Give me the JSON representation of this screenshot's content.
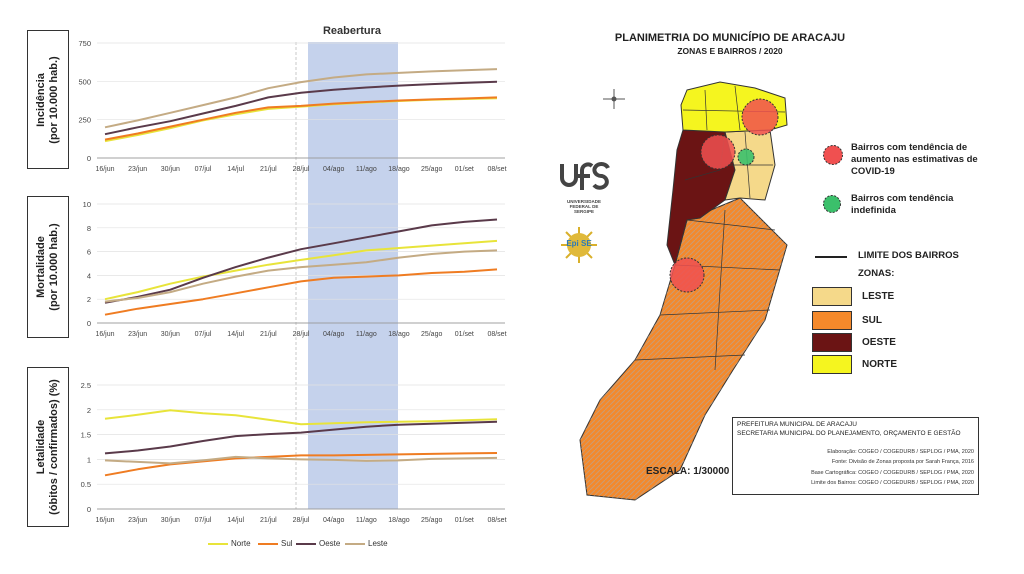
{
  "charts": {
    "band_title": "Reabertura",
    "ylabels": [
      "Incidência\n(por 10.000 hab.)",
      "Mortalidade\n(por 10.000 hab.)",
      "Letalidade\n(óbitos / confirmados) (%)"
    ],
    "xticks": [
      "16/jun",
      "23/jun",
      "30/jun",
      "07/jul",
      "14/jul",
      "21/jul",
      "28/jul",
      "04/ago",
      "11/ago",
      "18/ago",
      "25/ago",
      "01/set",
      "08/set"
    ],
    "legend": [
      {
        "name": "Norte",
        "color": "#e8e43a"
      },
      {
        "name": "Sul",
        "color": "#ef7c22"
      },
      {
        "name": "Oeste",
        "color": "#5a3a4a"
      },
      {
        "name": "Leste",
        "color": "#c4ab84"
      }
    ]
  },
  "chart_data": [
    {
      "type": "line",
      "ylabel": "Incidência (por 10.000 hab.)",
      "ylim": [
        0,
        750
      ],
      "yticks": [
        0,
        250,
        500,
        750
      ],
      "x": [
        "16/jun",
        "23/jun",
        "30/jun",
        "07/jul",
        "14/jul",
        "21/jul",
        "28/jul",
        "04/ago",
        "11/ago",
        "18/ago",
        "25/ago",
        "01/set",
        "08/set"
      ],
      "series": [
        {
          "name": "Norte",
          "values": [
            110,
            150,
            195,
            245,
            285,
            320,
            335,
            350,
            362,
            372,
            380,
            385,
            390
          ]
        },
        {
          "name": "Sul",
          "values": [
            120,
            160,
            205,
            250,
            295,
            330,
            340,
            355,
            365,
            375,
            382,
            388,
            395
          ]
        },
        {
          "name": "Oeste",
          "values": [
            155,
            200,
            240,
            290,
            340,
            395,
            425,
            445,
            460,
            472,
            482,
            490,
            497
          ]
        },
        {
          "name": "Leste",
          "values": [
            200,
            245,
            295,
            345,
            395,
            455,
            495,
            525,
            545,
            555,
            565,
            572,
            580
          ]
        }
      ]
    },
    {
      "type": "line",
      "ylabel": "Mortalidade (por 10.000 hab.)",
      "ylim": [
        0,
        10
      ],
      "yticks": [
        0,
        2,
        4,
        6,
        8,
        10
      ],
      "x": [
        "16/jun",
        "23/jun",
        "30/jun",
        "07/jul",
        "14/jul",
        "21/jul",
        "28/jul",
        "04/ago",
        "11/ago",
        "18/ago",
        "25/ago",
        "01/set",
        "08/set"
      ],
      "series": [
        {
          "name": "Norte",
          "values": [
            2.0,
            2.6,
            3.3,
            3.9,
            4.4,
            4.9,
            5.3,
            5.7,
            6.1,
            6.3,
            6.5,
            6.7,
            6.9
          ]
        },
        {
          "name": "Sul",
          "values": [
            0.7,
            1.2,
            1.6,
            2.0,
            2.5,
            3.0,
            3.5,
            3.8,
            3.9,
            4.0,
            4.2,
            4.3,
            4.5
          ]
        },
        {
          "name": "Oeste",
          "values": [
            1.7,
            2.2,
            2.8,
            3.8,
            4.7,
            5.5,
            6.2,
            6.7,
            7.2,
            7.7,
            8.2,
            8.5,
            8.7
          ]
        },
        {
          "name": "Leste",
          "values": [
            1.8,
            2.1,
            2.6,
            3.3,
            3.9,
            4.4,
            4.7,
            4.9,
            5.1,
            5.5,
            5.8,
            6.0,
            6.1
          ]
        }
      ]
    },
    {
      "type": "line",
      "ylabel": "Letalidade (óbitos / confirmados) (%)",
      "ylim": [
        0,
        2.5
      ],
      "yticks": [
        0,
        0.5,
        1,
        1.5,
        2,
        2.5
      ],
      "x": [
        "16/jun",
        "23/jun",
        "30/jun",
        "07/jul",
        "14/jul",
        "21/jul",
        "28/jul",
        "04/ago",
        "11/ago",
        "18/ago",
        "25/ago",
        "01/set",
        "08/set"
      ],
      "series": [
        {
          "name": "Norte",
          "values": [
            1.82,
            1.9,
            1.99,
            1.93,
            1.89,
            1.8,
            1.71,
            1.73,
            1.75,
            1.76,
            1.77,
            1.79,
            1.81
          ]
        },
        {
          "name": "Sul",
          "values": [
            0.68,
            0.8,
            0.9,
            0.96,
            1.02,
            1.05,
            1.08,
            1.08,
            1.09,
            1.1,
            1.11,
            1.12,
            1.13
          ]
        },
        {
          "name": "Oeste",
          "values": [
            1.12,
            1.18,
            1.26,
            1.37,
            1.47,
            1.51,
            1.54,
            1.6,
            1.66,
            1.7,
            1.72,
            1.74,
            1.76
          ]
        },
        {
          "name": "Leste",
          "values": [
            0.98,
            0.95,
            0.92,
            0.98,
            1.05,
            1.02,
            1.0,
            0.99,
            0.97,
            0.98,
            1.01,
            1.02,
            1.03
          ]
        }
      ]
    }
  ],
  "map": {
    "title": "PLANIMETRIA DO MUNICÍPIO DE ARACAJU",
    "subtitle": "ZONAS E BAIRROS / 2020",
    "legend_increase": "Bairros com tendência de aumento nas estimativas de COVID-19",
    "legend_undefined": "Bairros com tendência indefinida",
    "limit_label": "LIMITE DOS BAIRROS",
    "zones_label": "ZONAS:",
    "zones": [
      {
        "name": "LESTE",
        "color": "#f5d98a"
      },
      {
        "name": "SUL",
        "color": "#f4892b"
      },
      {
        "name": "OESTE",
        "color": "#6b1414"
      },
      {
        "name": "NORTE",
        "color": "#f5f51f"
      }
    ],
    "scale": "ESCALA: 1/30000",
    "ufs_text": "UNIVERSIDADE FEDERAL DE SERGIPE",
    "epi_text": "Epi SE",
    "info": {
      "title1": "PREFEITURA MUNICIPAL DE ARACAJU",
      "title2": "SECRETARIA MUNICIPAL DO PLANEJAMENTO, ORÇAMENTO E GESTÃO",
      "lines": [
        "Elaboração: COGEO / COGEDURB / SEPLOG / PMA, 2020",
        "Fonte: Divisão de Zonas proposta por Sarah França, 2016",
        "Base Cartográfica: COGEO / COGEDURB / SEPLOG / PMA, 2020",
        "Limite dos Bairros: COGEO / COGEDURB / SEPLOG / PMA, 2020"
      ]
    }
  }
}
